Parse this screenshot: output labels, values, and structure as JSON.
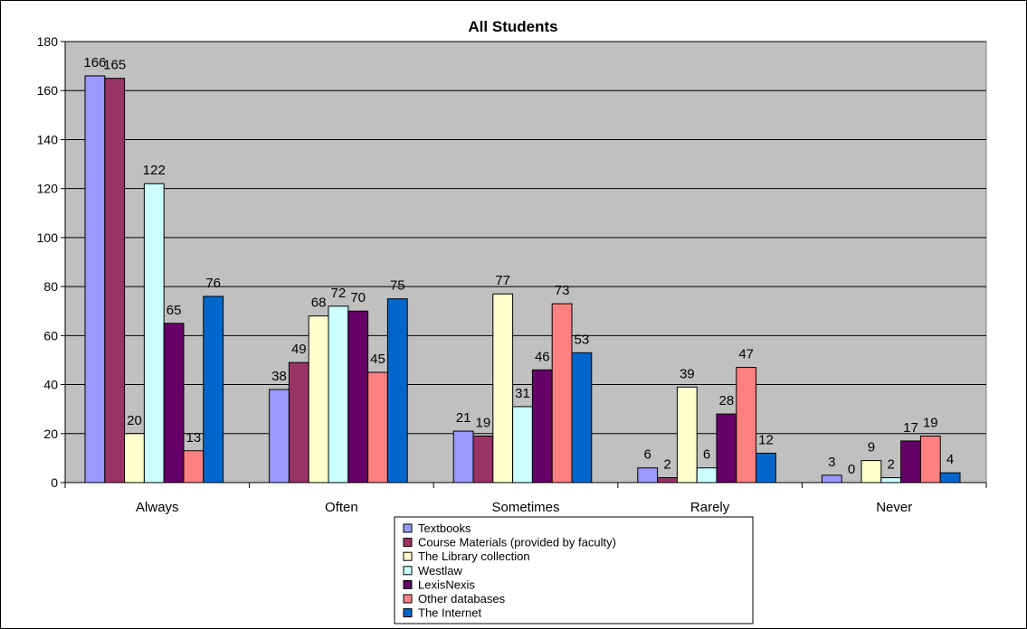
{
  "chart_data": {
    "type": "bar",
    "title": "All Students",
    "xlabel": "",
    "ylabel": "",
    "ylim": [
      0,
      180
    ],
    "yticks": [
      0,
      20,
      40,
      60,
      80,
      100,
      120,
      140,
      160,
      180
    ],
    "grid": true,
    "legend_position": "bottom",
    "categories": [
      "Always",
      "Often",
      "Sometimes",
      "Rarely",
      "Never"
    ],
    "series": [
      {
        "name": "Textbooks",
        "color": "#9999ff",
        "values": [
          166,
          38,
          21,
          6,
          3
        ]
      },
      {
        "name": "Course Materials (provided by faculty)",
        "color": "#993366",
        "values": [
          165,
          49,
          19,
          2,
          0
        ]
      },
      {
        "name": "The Library collection",
        "color": "#ffffcc",
        "values": [
          20,
          68,
          77,
          39,
          9
        ]
      },
      {
        "name": "Westlaw",
        "color": "#ccffff",
        "values": [
          122,
          72,
          31,
          6,
          2
        ]
      },
      {
        "name": "LexisNexis",
        "color": "#660066",
        "values": [
          65,
          70,
          46,
          28,
          17
        ]
      },
      {
        "name": "Other databases",
        "color": "#ff8080",
        "values": [
          13,
          45,
          73,
          47,
          19
        ]
      },
      {
        "name": "The Internet",
        "color": "#0066cc",
        "values": [
          76,
          75,
          53,
          12,
          4
        ]
      }
    ],
    "plot_background": "#c0c0c0"
  }
}
